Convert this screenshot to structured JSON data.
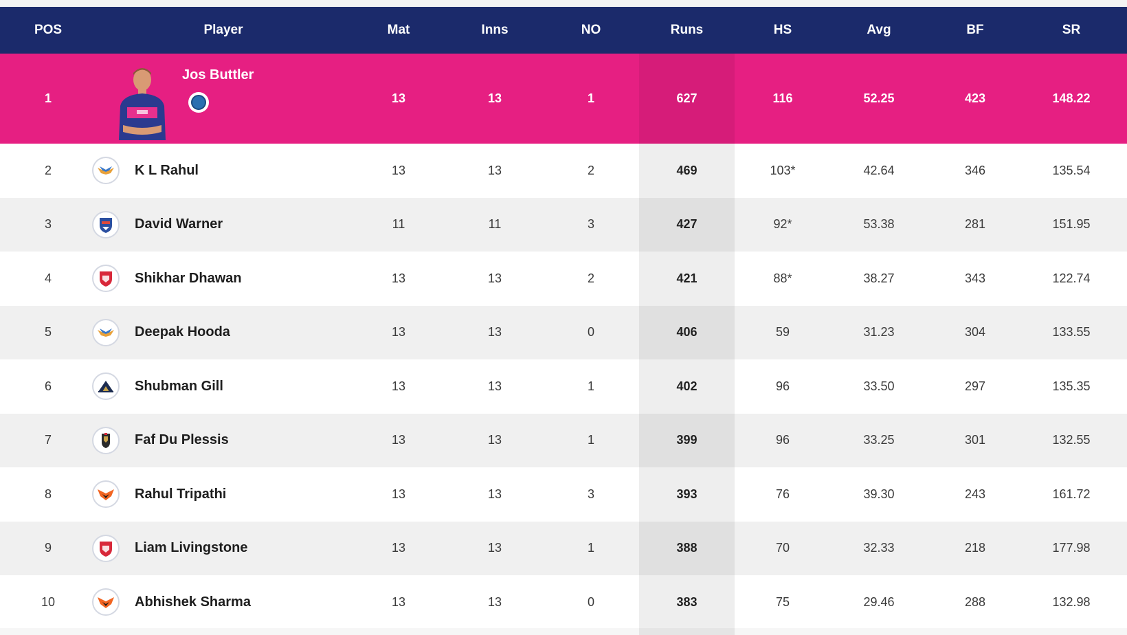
{
  "colors": {
    "header_bg": "#1b2a6b",
    "top_row_bg": "#e61f82",
    "row_alt_bg": "#f0f0f0"
  },
  "header": {
    "pos": "POS",
    "player": "Player",
    "mat": "Mat",
    "inns": "Inns",
    "no": "NO",
    "runs": "Runs",
    "hs": "HS",
    "avg": "Avg",
    "bf": "BF",
    "sr": "SR"
  },
  "top": {
    "pos": "1",
    "name": "Jos Buttler",
    "mat": "13",
    "inns": "13",
    "no": "1",
    "runs": "627",
    "hs": "116",
    "avg": "52.25",
    "bf": "423",
    "sr": "148.22"
  },
  "rows": [
    {
      "pos": "2",
      "name": "K L Rahul",
      "team_icon": "lucknow-logo-icon",
      "mat": "13",
      "inns": "13",
      "no": "2",
      "runs": "469",
      "hs": "103*",
      "avg": "42.64",
      "bf": "346",
      "sr": "135.54"
    },
    {
      "pos": "3",
      "name": "David Warner",
      "team_icon": "delhi-logo-icon",
      "mat": "11",
      "inns": "11",
      "no": "3",
      "runs": "427",
      "hs": "92*",
      "avg": "53.38",
      "bf": "281",
      "sr": "151.95"
    },
    {
      "pos": "4",
      "name": "Shikhar Dhawan",
      "team_icon": "punjab-logo-icon",
      "mat": "13",
      "inns": "13",
      "no": "2",
      "runs": "421",
      "hs": "88*",
      "avg": "38.27",
      "bf": "343",
      "sr": "122.74"
    },
    {
      "pos": "5",
      "name": "Deepak Hooda",
      "team_icon": "lucknow-logo-icon",
      "mat": "13",
      "inns": "13",
      "no": "0",
      "runs": "406",
      "hs": "59",
      "avg": "31.23",
      "bf": "304",
      "sr": "133.55"
    },
    {
      "pos": "6",
      "name": "Shubman Gill",
      "team_icon": "gujarat-logo-icon",
      "mat": "13",
      "inns": "13",
      "no": "1",
      "runs": "402",
      "hs": "96",
      "avg": "33.50",
      "bf": "297",
      "sr": "135.35"
    },
    {
      "pos": "7",
      "name": "Faf Du Plessis",
      "team_icon": "bangalore-logo-icon",
      "mat": "13",
      "inns": "13",
      "no": "1",
      "runs": "399",
      "hs": "96",
      "avg": "33.25",
      "bf": "301",
      "sr": "132.55"
    },
    {
      "pos": "8",
      "name": "Rahul Tripathi",
      "team_icon": "hyderabad-logo-icon",
      "mat": "13",
      "inns": "13",
      "no": "3",
      "runs": "393",
      "hs": "76",
      "avg": "39.30",
      "bf": "243",
      "sr": "161.72"
    },
    {
      "pos": "9",
      "name": "Liam Livingstone",
      "team_icon": "punjab-logo-icon",
      "mat": "13",
      "inns": "13",
      "no": "1",
      "runs": "388",
      "hs": "70",
      "avg": "32.33",
      "bf": "218",
      "sr": "177.98"
    },
    {
      "pos": "10",
      "name": "Abhishek Sharma",
      "team_icon": "hyderabad-logo-icon",
      "mat": "13",
      "inns": "13",
      "no": "0",
      "runs": "383",
      "hs": "75",
      "avg": "29.46",
      "bf": "288",
      "sr": "132.98"
    }
  ]
}
